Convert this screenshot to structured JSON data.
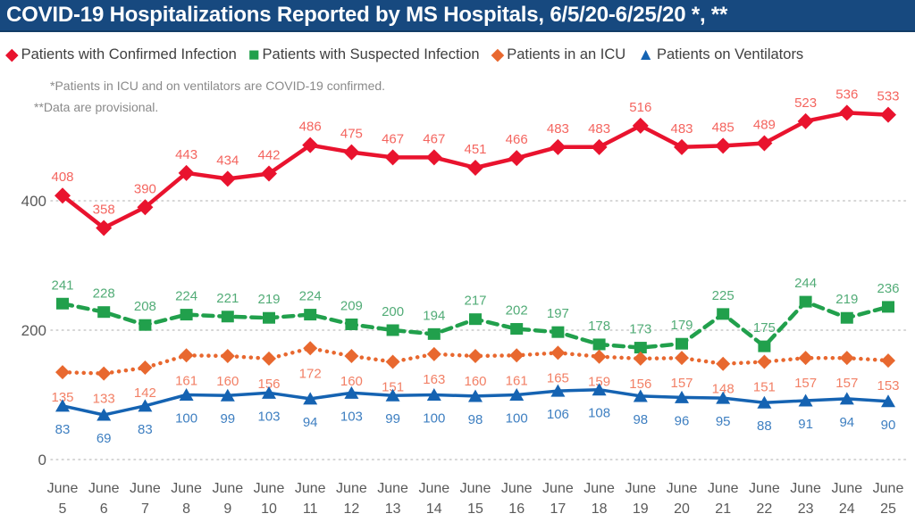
{
  "title": "COVID-19 Hospitalizations Reported by MS Hospitals, 6/5/20-6/25/20 *, **",
  "footnotes": [
    "*Patients in ICU and on ventilators are COVID-19 confirmed.",
    "**Data are provisional."
  ],
  "colors": {
    "title_bar_bg": "#17497F",
    "title_text": "#FFFFFF",
    "legend_text": "#404040",
    "axis_text": "#595959",
    "grid": "#C9C9C9",
    "footnote_text": "#8A8A8A",
    "background": "#FFFFFF"
  },
  "chart_data": {
    "type": "line",
    "title": "COVID-19 Hospitalizations Reported by MS Hospitals, 6/5/20-6/25/20 *, **",
    "x_month": "June",
    "x_days": [
      "5",
      "6",
      "7",
      "8",
      "9",
      "10",
      "11",
      "12",
      "13",
      "14",
      "15",
      "16",
      "17",
      "18",
      "19",
      "20",
      "21",
      "22",
      "23",
      "24",
      "25"
    ],
    "categories": [
      "June 5",
      "June 6",
      "June 7",
      "June 8",
      "June 9",
      "June 10",
      "June 11",
      "June 12",
      "June 13",
      "June 14",
      "June 15",
      "June 16",
      "June 17",
      "June 18",
      "June 19",
      "June 20",
      "June 21",
      "June 22",
      "June 23",
      "June 24",
      "June 25"
    ],
    "yticks": [
      0,
      200,
      400
    ],
    "ylim": [
      0,
      560
    ],
    "grid": "horizontal-dotted",
    "legend_position": "top",
    "series": [
      {
        "name": "Patients with Confirmed Infection",
        "marker": "diamond",
        "line_style": "solid",
        "color": "#E9132E",
        "label_color": "#F4655F",
        "values": [
          408,
          358,
          390,
          443,
          434,
          442,
          486,
          475,
          467,
          467,
          451,
          466,
          483,
          483,
          516,
          483,
          485,
          489,
          523,
          536,
          533
        ]
      },
      {
        "name": "Patients with Suspected Infection",
        "marker": "square",
        "line_style": "dashed",
        "color": "#21A04C",
        "label_color": "#52AC77",
        "values": [
          241,
          228,
          208,
          224,
          221,
          219,
          224,
          209,
          200,
          194,
          217,
          202,
          197,
          178,
          173,
          179,
          225,
          175,
          244,
          219,
          236
        ]
      },
      {
        "name": "Patients in an ICU",
        "marker": "diamond",
        "line_style": "dotted",
        "color": "#E8682F",
        "label_color": "#F28066",
        "values": [
          135,
          133,
          142,
          161,
          160,
          156,
          172,
          160,
          151,
          163,
          160,
          161,
          165,
          159,
          156,
          157,
          148,
          151,
          157,
          157,
          153
        ]
      },
      {
        "name": "Patients on Ventilators",
        "marker": "triangle",
        "line_style": "solid",
        "color": "#1563B2",
        "label_color": "#3E7FC1",
        "values": [
          83,
          69,
          83,
          100,
          99,
          103,
          94,
          103,
          99,
          100,
          98,
          100,
          106,
          108,
          98,
          96,
          95,
          88,
          91,
          94,
          90
        ]
      }
    ]
  }
}
